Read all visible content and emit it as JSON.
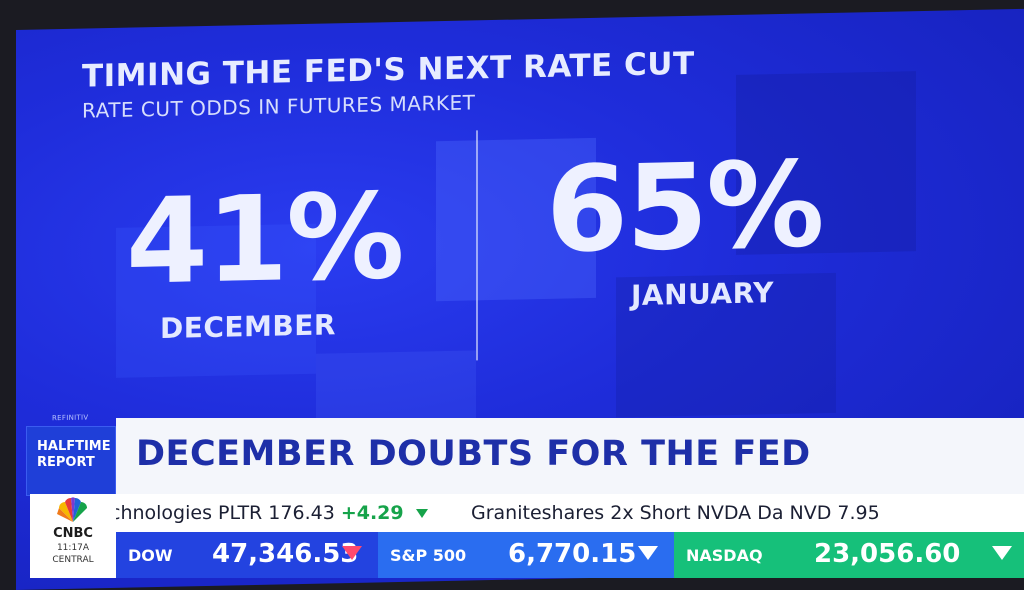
{
  "graphic": {
    "title": "TIMING THE FED'S NEXT RATE CUT",
    "subtitle": "RATE CUT ODDS IN FUTURES MARKET",
    "stats": [
      {
        "value": "41%",
        "label": "DECEMBER"
      },
      {
        "value": "65%",
        "label": "JANUARY"
      }
    ],
    "source": "REFINITIV",
    "colors": {
      "background": "#1f2ddb",
      "text": "#eef1ff"
    }
  },
  "lower_third": {
    "show_name": "HALFTIME REPORT",
    "headline": "DECEMBER DOUBTS FOR THE FED",
    "network": "CNBC",
    "time": "11:17A",
    "timezone": "CENTRAL",
    "crawl": [
      {
        "text": "chnologies PLTR 176.43",
        "change": "+4.29"
      },
      {
        "text": "Graniteshares 2x Short NVDA Da NVD 7.95"
      }
    ],
    "markets": [
      {
        "name": "DOW",
        "value": "47,346.53"
      },
      {
        "name": "S&P 500",
        "value": "6,770.15"
      },
      {
        "name": "NASDAQ",
        "value": "23,056.60"
      }
    ],
    "colors": {
      "headline": "#1e2fa8",
      "up": "#16a34a",
      "down": "#ff4a6e"
    }
  }
}
